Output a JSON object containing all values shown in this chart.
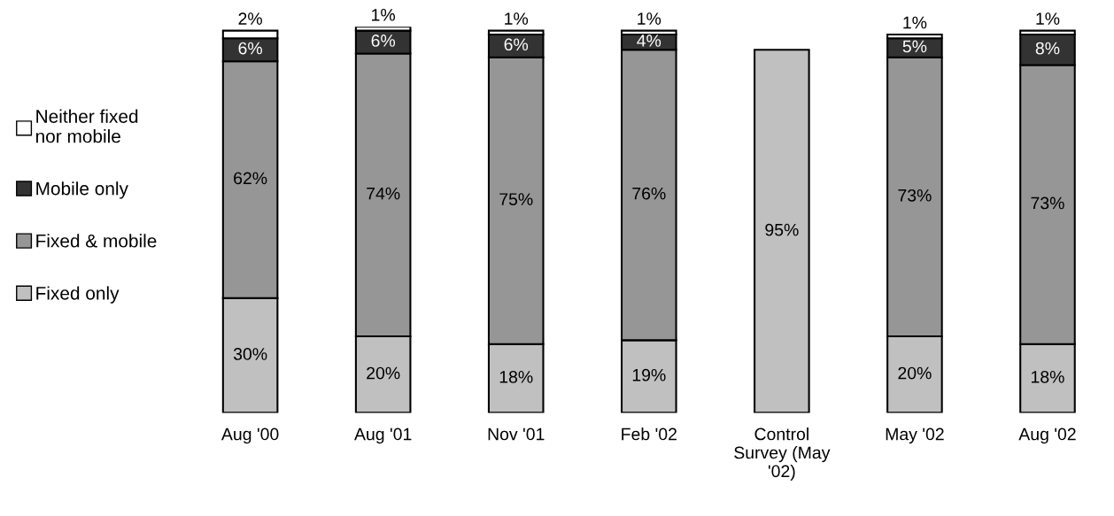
{
  "chart_data": {
    "type": "bar",
    "stacked": true,
    "legend": "left",
    "grid": false,
    "categories": [
      "Aug '00",
      "Aug '01",
      "Nov '01",
      "Feb '02",
      "Control Survey (May '02)",
      "May '02",
      "Aug '02"
    ],
    "series": [
      {
        "name": "Fixed only",
        "color": "#c0c0c0",
        "values": [
          30,
          20,
          18,
          19,
          95,
          20,
          18
        ],
        "value_labels": [
          "30%",
          "20%",
          "18%",
          "19%",
          "95%",
          "20%",
          "18%"
        ]
      },
      {
        "name": "Fixed & mobile",
        "color": "#969696",
        "values": [
          62,
          74,
          75,
          76,
          null,
          73,
          73
        ],
        "value_labels": [
          "62%",
          "74%",
          "75%",
          "76%",
          null,
          "73%",
          "73%"
        ]
      },
      {
        "name": "Mobile only",
        "color": "#333333",
        "values": [
          6,
          6,
          6,
          4,
          null,
          5,
          8
        ],
        "value_labels": [
          "6%",
          "6%",
          "6%",
          "4%",
          null,
          "5%",
          "8%"
        ]
      },
      {
        "name": "Neither fixed nor mobile",
        "color": "#ffffff",
        "values": [
          2,
          1,
          1,
          1,
          null,
          1,
          1
        ],
        "value_labels": [
          "2%",
          "1%",
          "1%",
          "1%",
          null,
          "1%",
          "1%"
        ]
      }
    ]
  }
}
